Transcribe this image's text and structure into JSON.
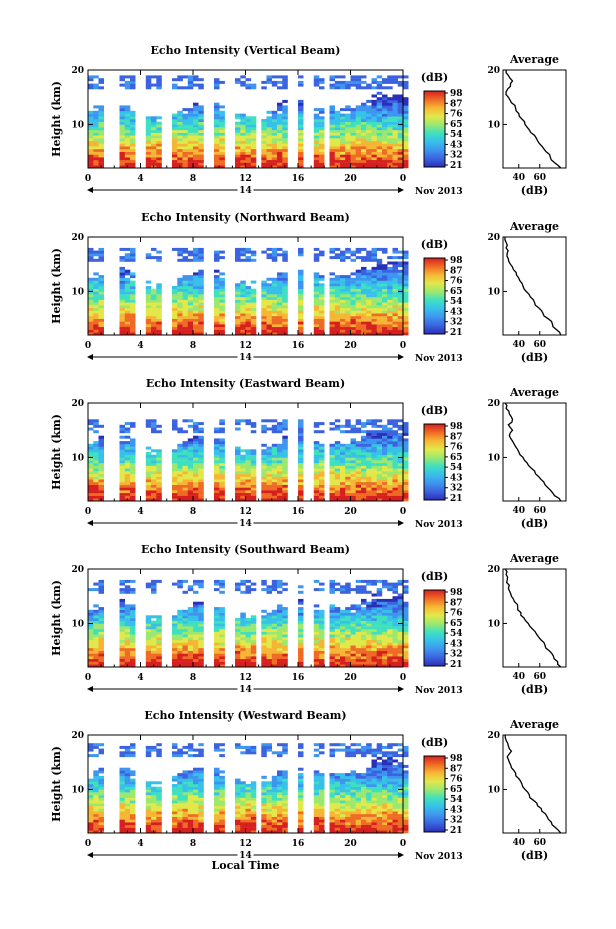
{
  "chart_data": [
    {
      "type": "heatmap",
      "title": "Echo Intensity (Vertical Beam)",
      "xlabel": "",
      "ylabel": "Height (km)",
      "xlim": [
        0,
        24
      ],
      "ylim": [
        2,
        20
      ],
      "x_ticks": [
        "0",
        "4",
        "8",
        "12",
        "16",
        "20",
        "0"
      ],
      "y_ticks": [
        "20",
        "10"
      ],
      "date_day": "14",
      "date_month": "Nov 2013",
      "colorbar": {
        "unit": "(dB)",
        "ticks": [
          "98",
          "87",
          "76",
          "65",
          "54",
          "43",
          "32",
          "21"
        ],
        "range": [
          21,
          98
        ]
      },
      "data_gaps_hours": [
        [
          1.3,
          2.4
        ],
        [
          3.6,
          4.4
        ],
        [
          5.8,
          6.4
        ],
        [
          8.8,
          9.6
        ],
        [
          10.3,
          11.3
        ],
        [
          12.7,
          13.4
        ],
        [
          15.3,
          15.9
        ],
        [
          16.6,
          17.2
        ],
        [
          18.0,
          18.2
        ]
      ],
      "top_echo_km": 18.5,
      "average_profile": {
        "title": "Average",
        "xlabel": "(dB)",
        "ylabel": "",
        "xlim": [
          25,
          85
        ],
        "ylim": [
          2,
          20
        ],
        "x_ticks": [
          "40",
          "60"
        ],
        "y_ticks": [
          "20",
          "10"
        ],
        "height_km": [
          2,
          3,
          4,
          5,
          6,
          7,
          8,
          9,
          10,
          11,
          12,
          13,
          14,
          15,
          16,
          17,
          18,
          19,
          20
        ],
        "values_db": [
          80,
          74,
          70,
          66,
          62,
          58,
          55,
          50,
          46,
          43,
          40,
          37,
          33,
          30,
          28,
          32,
          34,
          30,
          28
        ]
      }
    },
    {
      "type": "heatmap",
      "title": "Echo Intensity (Northward Beam)",
      "xlabel": "",
      "ylabel": "Height (km)",
      "xlim": [
        0,
        24
      ],
      "ylim": [
        2,
        20
      ],
      "x_ticks": [
        "0",
        "4",
        "8",
        "12",
        "16",
        "20",
        "0"
      ],
      "y_ticks": [
        "20",
        "10"
      ],
      "date_day": "14",
      "date_month": "Nov 2013",
      "colorbar": {
        "unit": "(dB)",
        "ticks": [
          "98",
          "87",
          "76",
          "65",
          "54",
          "43",
          "32",
          "21"
        ],
        "range": [
          21,
          98
        ]
      },
      "data_gaps_hours": [
        [
          1.3,
          2.4
        ],
        [
          3.6,
          4.4
        ],
        [
          5.8,
          6.4
        ],
        [
          8.8,
          9.6
        ],
        [
          10.3,
          11.3
        ],
        [
          12.7,
          13.4
        ],
        [
          15.3,
          15.9
        ],
        [
          16.6,
          17.2
        ],
        [
          18.0,
          18.2
        ]
      ],
      "top_echo_km": 17.5,
      "average_profile": {
        "title": "Average",
        "xlabel": "(dB)",
        "ylabel": "",
        "xlim": [
          25,
          85
        ],
        "ylim": [
          2,
          20
        ],
        "x_ticks": [
          "40",
          "60"
        ],
        "y_ticks": [
          "20",
          "10"
        ],
        "height_km": [
          2,
          3,
          4,
          5,
          6,
          7,
          8,
          9,
          10,
          11,
          12,
          13,
          14,
          15,
          16,
          17,
          18,
          19,
          20
        ],
        "values_db": [
          80,
          76,
          72,
          68,
          63,
          59,
          55,
          51,
          47,
          44,
          41,
          38,
          35,
          32,
          30,
          29,
          28,
          28,
          27
        ]
      }
    },
    {
      "type": "heatmap",
      "title": "Echo Intensity (Eastward Beam)",
      "xlabel": "",
      "ylabel": "Height (km)",
      "xlim": [
        0,
        24
      ],
      "ylim": [
        2,
        20
      ],
      "x_ticks": [
        "0",
        "4",
        "8",
        "12",
        "16",
        "20",
        "0"
      ],
      "y_ticks": [
        "20",
        "10"
      ],
      "date_day": "14",
      "date_month": "Nov 2013",
      "colorbar": {
        "unit": "(dB)",
        "ticks": [
          "98",
          "87",
          "76",
          "65",
          "54",
          "43",
          "32",
          "21"
        ],
        "range": [
          21,
          98
        ]
      },
      "data_gaps_hours": [
        [
          1.3,
          2.4
        ],
        [
          3.6,
          4.4
        ],
        [
          5.8,
          6.4
        ],
        [
          8.8,
          9.6
        ],
        [
          10.3,
          11.3
        ],
        [
          12.7,
          13.4
        ],
        [
          15.3,
          15.9
        ],
        [
          16.6,
          17.2
        ],
        [
          18.0,
          18.2
        ]
      ],
      "top_echo_km": 16.5,
      "average_profile": {
        "title": "Average",
        "xlabel": "(dB)",
        "ylabel": "",
        "xlim": [
          25,
          85
        ],
        "ylim": [
          2,
          20
        ],
        "x_ticks": [
          "40",
          "60"
        ],
        "y_ticks": [
          "20",
          "10"
        ],
        "height_km": [
          2,
          3,
          4,
          5,
          6,
          7,
          8,
          9,
          10,
          11,
          12,
          13,
          14,
          15,
          16,
          17,
          18,
          19,
          20
        ],
        "values_db": [
          80,
          74,
          70,
          65,
          61,
          56,
          52,
          48,
          44,
          40,
          37,
          34,
          31,
          34,
          30,
          34,
          31,
          28,
          27
        ]
      }
    },
    {
      "type": "heatmap",
      "title": "Echo Intensity (Southward Beam)",
      "xlabel": "",
      "ylabel": "Height (km)",
      "xlim": [
        0,
        24
      ],
      "ylim": [
        2,
        20
      ],
      "x_ticks": [
        "0",
        "4",
        "8",
        "12",
        "16",
        "20",
        "0"
      ],
      "y_ticks": [
        "20",
        "10"
      ],
      "date_day": "14",
      "date_month": "Nov 2013",
      "colorbar": {
        "unit": "(dB)",
        "ticks": [
          "98",
          "87",
          "76",
          "65",
          "54",
          "43",
          "32",
          "21"
        ],
        "range": [
          21,
          98
        ]
      },
      "data_gaps_hours": [
        [
          1.3,
          2.4
        ],
        [
          3.6,
          4.4
        ],
        [
          5.8,
          6.4
        ],
        [
          8.8,
          9.6
        ],
        [
          10.3,
          11.3
        ],
        [
          12.7,
          13.4
        ],
        [
          15.3,
          15.9
        ],
        [
          16.6,
          17.2
        ],
        [
          18.0,
          18.2
        ]
      ],
      "top_echo_km": 17.5,
      "average_profile": {
        "title": "Average",
        "xlabel": "(dB)",
        "ylabel": "",
        "xlim": [
          25,
          85
        ],
        "ylim": [
          2,
          20
        ],
        "x_ticks": [
          "40",
          "60"
        ],
        "y_ticks": [
          "20",
          "10"
        ],
        "height_km": [
          2,
          3,
          4,
          5,
          6,
          7,
          8,
          9,
          10,
          11,
          12,
          13,
          14,
          15,
          16,
          17,
          18,
          19,
          20
        ],
        "values_db": [
          80,
          77,
          73,
          69,
          65,
          61,
          57,
          53,
          49,
          45,
          42,
          39,
          36,
          33,
          31,
          31,
          29,
          28,
          27
        ]
      }
    },
    {
      "type": "heatmap",
      "title": "Echo Intensity (Westward Beam)",
      "xlabel": "Local Time",
      "ylabel": "Height (km)",
      "xlim": [
        0,
        24
      ],
      "ylim": [
        2,
        20
      ],
      "x_ticks": [
        "0",
        "4",
        "8",
        "12",
        "16",
        "20",
        "0"
      ],
      "y_ticks": [
        "20",
        "10"
      ],
      "date_day": "14",
      "date_month": "Nov 2013",
      "colorbar": {
        "unit": "(dB)",
        "ticks": [
          "98",
          "87",
          "76",
          "65",
          "54",
          "43",
          "32",
          "21"
        ],
        "range": [
          21,
          98
        ]
      },
      "data_gaps_hours": [
        [
          1.3,
          2.4
        ],
        [
          3.6,
          4.4
        ],
        [
          5.8,
          6.4
        ],
        [
          8.8,
          9.6
        ],
        [
          10.3,
          11.3
        ],
        [
          12.7,
          13.4
        ],
        [
          15.3,
          15.9
        ],
        [
          16.6,
          17.2
        ],
        [
          18.0,
          18.2
        ]
      ],
      "top_echo_km": 18,
      "average_profile": {
        "title": "Average",
        "xlabel": "(dB)",
        "ylabel": "",
        "xlim": [
          25,
          85
        ],
        "ylim": [
          2,
          20
        ],
        "x_ticks": [
          "40",
          "60"
        ],
        "y_ticks": [
          "20",
          "10"
        ],
        "height_km": [
          2,
          3,
          4,
          5,
          6,
          7,
          8,
          9,
          10,
          11,
          12,
          13,
          14,
          15,
          16,
          17,
          18,
          19,
          20
        ],
        "values_db": [
          80,
          75,
          71,
          67,
          62,
          58,
          54,
          50,
          46,
          43,
          40,
          37,
          33,
          31,
          29,
          33,
          30,
          28,
          27
        ]
      }
    }
  ],
  "colors": {
    "scale": [
      "#2a2fb8",
      "#3b63e0",
      "#3e95ef",
      "#37c0ea",
      "#3fe0c0",
      "#9be870",
      "#e2e84a",
      "#f6b635",
      "#ef6a25",
      "#d62020"
    ]
  }
}
